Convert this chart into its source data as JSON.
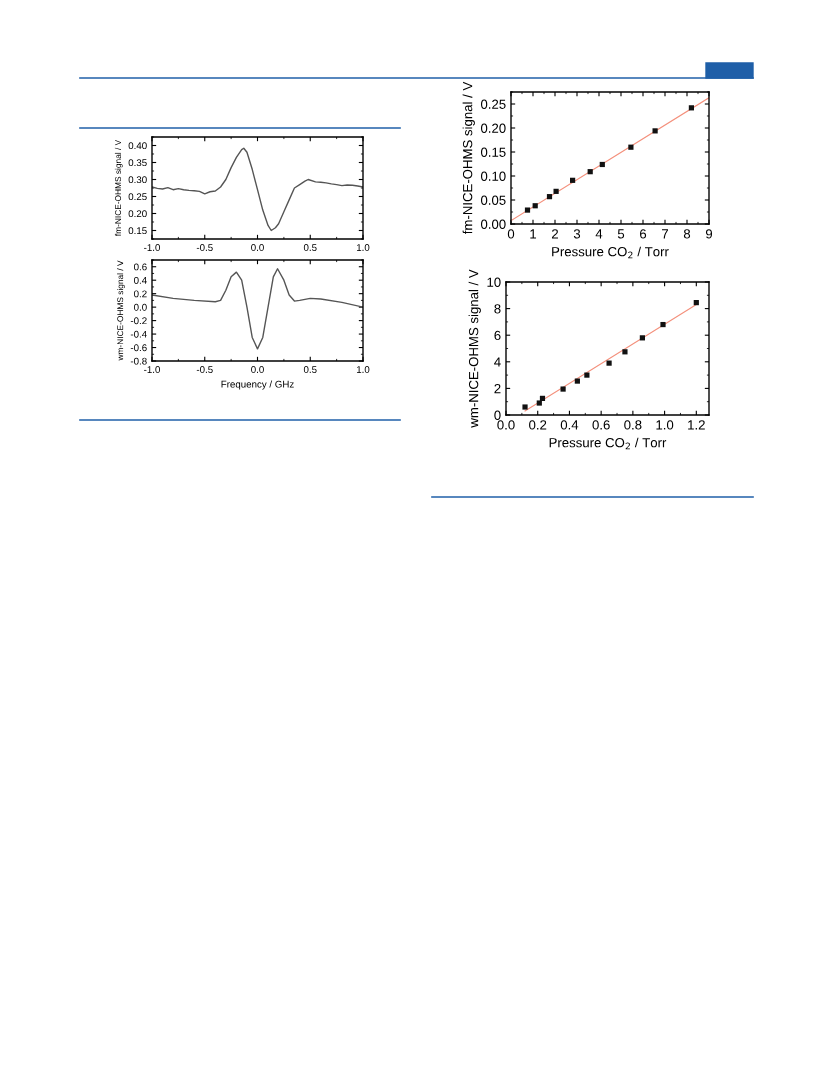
{
  "chart_data": [
    {
      "type": "line",
      "ylabel": "fm-NICE-OHMS signal / V",
      "x": [
        -1.0,
        -0.95,
        -0.9,
        -0.85,
        -0.8,
        -0.75,
        -0.7,
        -0.65,
        -0.6,
        -0.55,
        -0.5,
        -0.45,
        -0.4,
        -0.35,
        -0.3,
        -0.25,
        -0.2,
        -0.15,
        -0.13,
        -0.1,
        -0.05,
        0.0,
        0.05,
        0.1,
        0.13,
        0.17,
        0.2,
        0.25,
        0.3,
        0.35,
        0.4,
        0.45,
        0.48,
        0.55,
        0.6,
        0.65,
        0.7,
        0.75,
        0.8,
        0.85,
        0.9,
        0.95,
        1.0
      ],
      "series": [
        {
          "color": "#555555",
          "values": [
            0.278,
            0.274,
            0.272,
            0.276,
            0.27,
            0.273,
            0.27,
            0.268,
            0.267,
            0.265,
            0.258,
            0.264,
            0.266,
            0.278,
            0.3,
            0.335,
            0.365,
            0.388,
            0.392,
            0.38,
            0.33,
            0.27,
            0.21,
            0.165,
            0.15,
            0.158,
            0.17,
            0.205,
            0.24,
            0.275,
            0.285,
            0.295,
            0.3,
            0.293,
            0.292,
            0.29,
            0.287,
            0.285,
            0.282,
            0.284,
            0.283,
            0.281,
            0.278
          ]
        }
      ],
      "xlim": [
        -1.0,
        1.0
      ],
      "xticks": [
        {
          "value": -1.0,
          "label": "-1.0"
        },
        {
          "value": -0.5,
          "label": "-0.5"
        },
        {
          "value": 0.0,
          "label": "0.0"
        },
        {
          "value": 0.5,
          "label": "0.5"
        },
        {
          "value": 1.0,
          "label": "1.0"
        }
      ],
      "ylim": [
        0.125,
        0.425
      ],
      "yticks": [
        {
          "value": 0.15,
          "label": "0.15"
        },
        {
          "value": 0.2,
          "label": "0.20"
        },
        {
          "value": 0.25,
          "label": "0.25"
        },
        {
          "value": 0.3,
          "label": "0.30"
        },
        {
          "value": 0.35,
          "label": "0.35"
        },
        {
          "value": 0.4,
          "label": "0.40"
        }
      ],
      "grid": false,
      "legend": false
    },
    {
      "type": "line",
      "xlabel": "Frequency / GHz",
      "ylabel": "wm-NICE-OHMS signal / V",
      "x": [
        -1.0,
        -0.8,
        -0.6,
        -0.4,
        -0.35,
        -0.3,
        -0.25,
        -0.2,
        -0.15,
        -0.1,
        -0.05,
        0.0,
        0.05,
        0.1,
        0.15,
        0.19,
        0.25,
        0.3,
        0.35,
        0.4,
        0.5,
        0.6,
        0.8,
        1.0
      ],
      "series": [
        {
          "color": "#555555",
          "values": [
            0.18,
            0.13,
            0.1,
            0.08,
            0.1,
            0.25,
            0.45,
            0.52,
            0.4,
            0.0,
            -0.45,
            -0.62,
            -0.45,
            0.0,
            0.45,
            0.57,
            0.4,
            0.18,
            0.09,
            0.1,
            0.13,
            0.12,
            0.07,
            0.0
          ]
        }
      ],
      "xlim": [
        -1.0,
        1.0
      ],
      "xticks": [
        {
          "value": -1.0,
          "label": "-1.0"
        },
        {
          "value": -0.5,
          "label": "-0.5"
        },
        {
          "value": 0.0,
          "label": "0.0"
        },
        {
          "value": 0.5,
          "label": "0.5"
        },
        {
          "value": 1.0,
          "label": "1.0"
        }
      ],
      "ylim": [
        -0.8,
        0.7
      ],
      "yticks": [
        {
          "value": -0.8,
          "label": "-0.8"
        },
        {
          "value": -0.6,
          "label": "-0.6"
        },
        {
          "value": -0.4,
          "label": "-0.4"
        },
        {
          "value": -0.2,
          "label": "-0.2"
        },
        {
          "value": 0.0,
          "label": "0.0"
        },
        {
          "value": 0.2,
          "label": "0.2"
        },
        {
          "value": 0.4,
          "label": "0.4"
        },
        {
          "value": 0.6,
          "label": "0.6"
        }
      ],
      "grid": false,
      "legend": false
    },
    {
      "type": "scatter",
      "xlabel": "Pressure CO$_{2}$ / Torr",
      "ylabel": "fm-NICE-OHMS signal / V",
      "legend": false,
      "grid": false,
      "series": [
        {
          "type": "scatter",
          "marker": "square",
          "color": "#111111",
          "x": [
            0.75,
            1.1,
            1.75,
            2.05,
            2.8,
            3.6,
            4.15,
            5.45,
            6.55,
            8.2
          ],
          "values": [
            0.029,
            0.038,
            0.057,
            0.068,
            0.091,
            0.109,
            0.124,
            0.16,
            0.194,
            0.242
          ]
        },
        {
          "type": "line",
          "color": "#f4907c",
          "x": [
            0,
            9
          ],
          "values": [
            0.007,
            0.263
          ]
        }
      ],
      "xlim": [
        0,
        9
      ],
      "xticks": [
        0,
        1,
        2,
        3,
        4,
        5,
        6,
        7,
        8,
        9
      ],
      "ylim": [
        0,
        0.275
      ],
      "yticks": [
        {
          "value": 0,
          "label": "0.00"
        },
        {
          "value": 0.05,
          "label": "0.05"
        },
        {
          "value": 0.1,
          "label": "0.10"
        },
        {
          "value": 0.15,
          "label": "0.15"
        },
        {
          "value": 0.2,
          "label": "0.20"
        },
        {
          "value": 0.25,
          "label": "0.25"
        }
      ]
    },
    {
      "type": "scatter",
      "xlabel": "Pressure CO$_{2}$ / Torr",
      "ylabel": "wm-NICE-OHMS signal / V",
      "legend": false,
      "grid": false,
      "series": [
        {
          "type": "scatter",
          "marker": "square",
          "color": "#111111",
          "x": [
            0.12,
            0.21,
            0.23,
            0.36,
            0.45,
            0.51,
            0.65,
            0.75,
            0.86,
            0.99,
            1.2
          ],
          "values": [
            0.6,
            0.9,
            1.25,
            1.95,
            2.55,
            3.0,
            3.9,
            4.75,
            5.8,
            6.8,
            8.45
          ]
        },
        {
          "type": "line",
          "color": "#f4907c",
          "x": [
            0.12,
            1.2
          ],
          "values": [
            0.3,
            8.3
          ]
        }
      ],
      "xlim": [
        0,
        1.28
      ],
      "xticks": [
        {
          "value": 0,
          "label": "0.0"
        },
        {
          "value": 0.2,
          "label": "0.2"
        },
        {
          "value": 0.4,
          "label": "0.4"
        },
        {
          "value": 0.6,
          "label": "0.6"
        },
        {
          "value": 0.8,
          "label": "0.8"
        },
        {
          "value": 1.0,
          "label": "1.0"
        },
        {
          "value": 1.2,
          "label": "1.2"
        }
      ],
      "ylim": [
        0,
        10
      ],
      "yticks": [
        0,
        2,
        4,
        6,
        8,
        10
      ]
    }
  ]
}
